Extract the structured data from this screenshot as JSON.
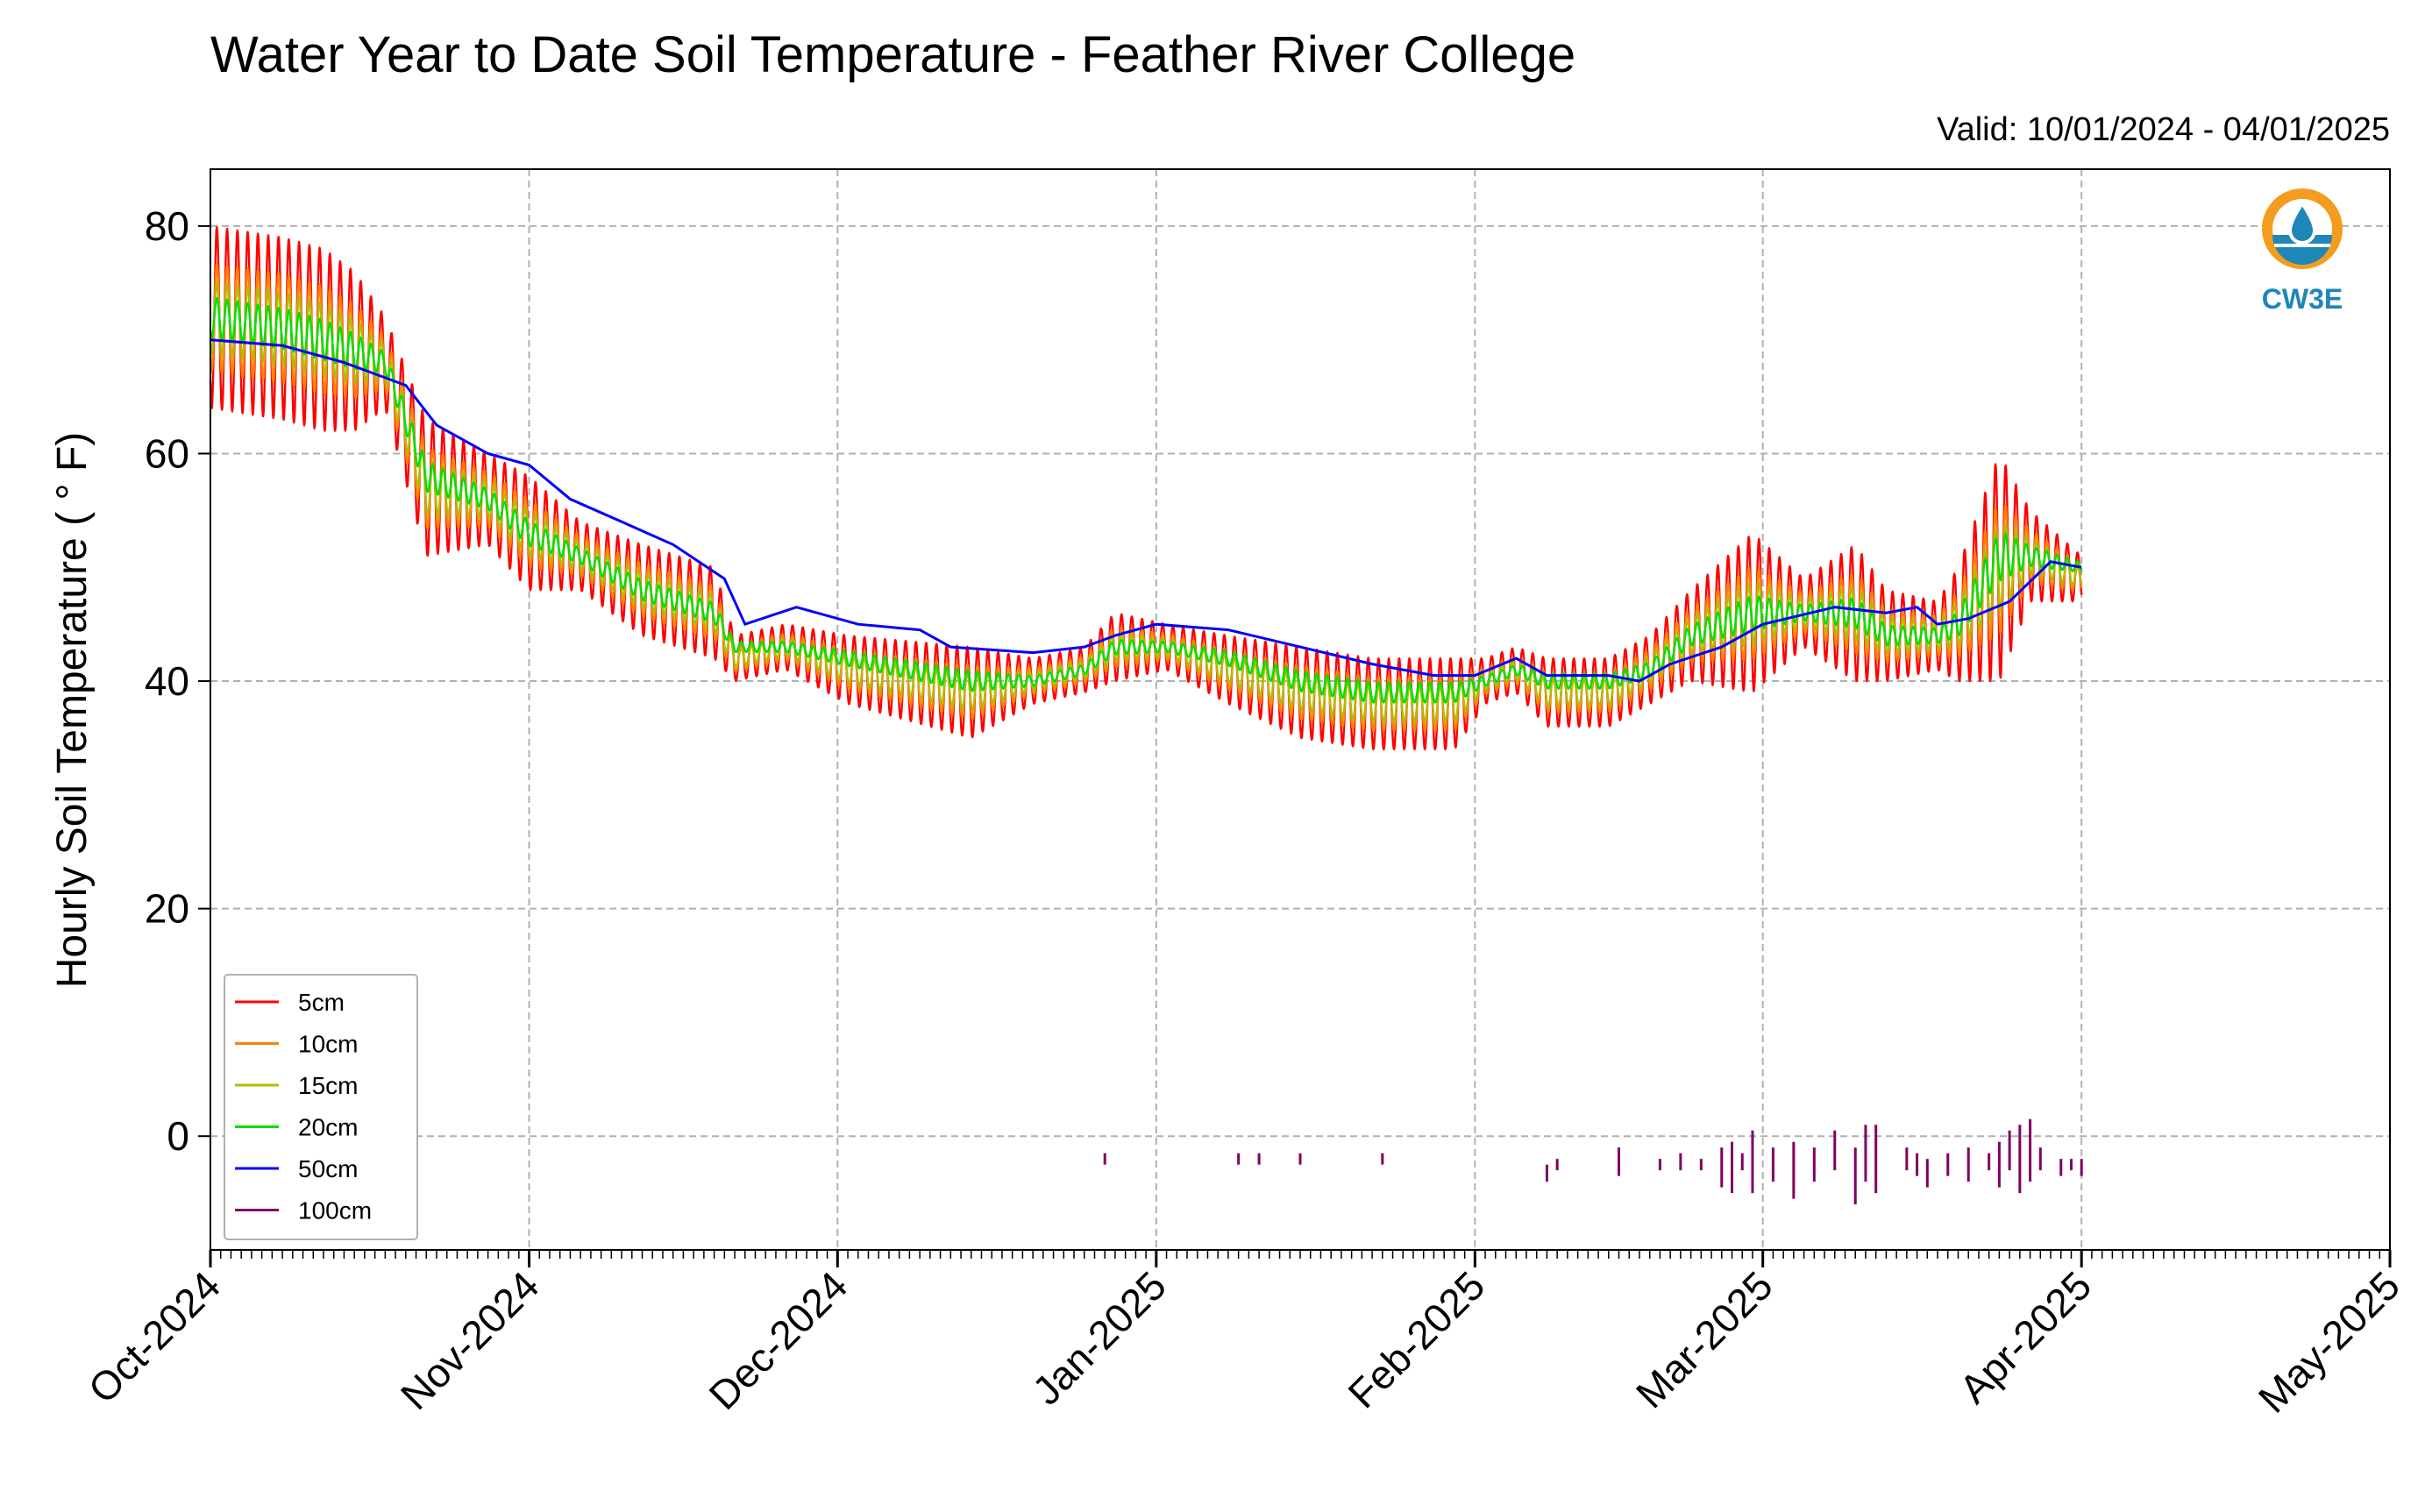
{
  "chart_data": {
    "type": "line",
    "title": "Water Year to Date Soil Temperature - Feather River College",
    "subtitle": "Valid: 10/01/2024 - 04/01/2025",
    "xlabel": "",
    "ylabel": "Hourly Soil Temperature ( $^\\circ$F)",
    "ylabel_display": "Hourly Soil Temperature ( ° F)",
    "xlim": [
      "2024-10-01",
      "2025-05-01"
    ],
    "ylim": [
      -10,
      85
    ],
    "x_ticks": [
      "Oct-2024",
      "Nov-2024",
      "Dec-2024",
      "Jan-2025",
      "Feb-2025",
      "Mar-2025",
      "Apr-2025",
      "May-2025"
    ],
    "y_ticks": [
      0,
      20,
      40,
      60,
      80
    ],
    "grid": true,
    "legend_position": "lower-left",
    "logo": {
      "text": "CW3E",
      "color_top": "#f39c1f",
      "color_bottom": "#1f86b8"
    },
    "series_colors": {
      "5cm": "#ff0000",
      "10cm": "#ff8000",
      "15cm": "#b8b800",
      "20cm": "#00e000",
      "50cm": "#0000ff",
      "100cm": "#800060"
    },
    "series": [
      {
        "name": "5cm",
        "color": "#ff0000",
        "amplitude_multiplier": 1.0,
        "envelope": [
          [
            "2024-10-01",
            72,
            8
          ],
          [
            "2024-10-08",
            71,
            8
          ],
          [
            "2024-10-12",
            70,
            8
          ],
          [
            "2024-10-15",
            69,
            7
          ],
          [
            "2024-10-18",
            68,
            4
          ],
          [
            "2024-10-22",
            57,
            6
          ],
          [
            "2024-10-28",
            56,
            4
          ],
          [
            "2024-11-01",
            53,
            5
          ],
          [
            "2024-11-06",
            51,
            3
          ],
          [
            "2024-11-12",
            48,
            4
          ],
          [
            "2024-11-19",
            46,
            4
          ],
          [
            "2024-11-21",
            42,
            2
          ],
          [
            "2024-11-26",
            43,
            2
          ],
          [
            "2024-12-02",
            41,
            3
          ],
          [
            "2024-12-14",
            39,
            4
          ],
          [
            "2024-12-20",
            40,
            2
          ],
          [
            "2024-12-25",
            41,
            2
          ],
          [
            "2024-12-28",
            43,
            3
          ],
          [
            "2025-01-02",
            43,
            2
          ],
          [
            "2025-01-08",
            41,
            3
          ],
          [
            "2025-01-15",
            39,
            4
          ],
          [
            "2025-01-22",
            38,
            4
          ],
          [
            "2025-01-30",
            38,
            4
          ],
          [
            "2025-02-02",
            40,
            2
          ],
          [
            "2025-02-05",
            41,
            2
          ],
          [
            "2025-02-08",
            39,
            3
          ],
          [
            "2025-02-14",
            39,
            3
          ],
          [
            "2025-02-18",
            41,
            3
          ],
          [
            "2025-02-22",
            44,
            4
          ],
          [
            "2025-02-28",
            46,
            7
          ],
          [
            "2025-03-05",
            46,
            3
          ],
          [
            "2025-03-10",
            46,
            6
          ],
          [
            "2025-03-13",
            44,
            4
          ],
          [
            "2025-03-18",
            44,
            3
          ],
          [
            "2025-03-20",
            45,
            5
          ],
          [
            "2025-03-24",
            50,
            10
          ],
          [
            "2025-03-27",
            51,
            4
          ],
          [
            "2025-04-01",
            49,
            2
          ]
        ]
      },
      {
        "name": "10cm",
        "color": "#ff8000",
        "amplitude_multiplier": 0.6,
        "envelope": [
          [
            "2024-10-01",
            72,
            8
          ],
          [
            "2024-10-08",
            71,
            8
          ],
          [
            "2024-10-12",
            70,
            8
          ],
          [
            "2024-10-15",
            69,
            7
          ],
          [
            "2024-10-18",
            68,
            4
          ],
          [
            "2024-10-22",
            57,
            6
          ],
          [
            "2024-10-28",
            56,
            4
          ],
          [
            "2024-11-01",
            53,
            5
          ],
          [
            "2024-11-06",
            51,
            3
          ],
          [
            "2024-11-12",
            48,
            4
          ],
          [
            "2024-11-19",
            46,
            4
          ],
          [
            "2024-11-21",
            42,
            2
          ],
          [
            "2024-11-26",
            43,
            2
          ],
          [
            "2024-12-02",
            41,
            3
          ],
          [
            "2024-12-14",
            39,
            4
          ],
          [
            "2024-12-20",
            40,
            2
          ],
          [
            "2024-12-25",
            41,
            2
          ],
          [
            "2024-12-28",
            43,
            3
          ],
          [
            "2025-01-02",
            43,
            2
          ],
          [
            "2025-01-08",
            41,
            3
          ],
          [
            "2025-01-15",
            39,
            4
          ],
          [
            "2025-01-22",
            38,
            4
          ],
          [
            "2025-01-30",
            38,
            4
          ],
          [
            "2025-02-02",
            40,
            2
          ],
          [
            "2025-02-05",
            41,
            2
          ],
          [
            "2025-02-08",
            39,
            3
          ],
          [
            "2025-02-14",
            39,
            3
          ],
          [
            "2025-02-18",
            41,
            3
          ],
          [
            "2025-02-22",
            44,
            4
          ],
          [
            "2025-02-28",
            46,
            7
          ],
          [
            "2025-03-05",
            46,
            3
          ],
          [
            "2025-03-10",
            46,
            6
          ],
          [
            "2025-03-13",
            44,
            4
          ],
          [
            "2025-03-18",
            44,
            3
          ],
          [
            "2025-03-20",
            45,
            5
          ],
          [
            "2025-03-24",
            50,
            10
          ],
          [
            "2025-03-27",
            51,
            4
          ],
          [
            "2025-04-01",
            49,
            2
          ]
        ]
      },
      {
        "name": "15cm",
        "color": "#b8b800",
        "amplitude_multiplier": 0.4,
        "envelope": [
          [
            "2024-10-01",
            72,
            8
          ],
          [
            "2024-10-08",
            71,
            8
          ],
          [
            "2024-10-12",
            70,
            8
          ],
          [
            "2024-10-15",
            69,
            7
          ],
          [
            "2024-10-18",
            68,
            4
          ],
          [
            "2024-10-22",
            57,
            6
          ],
          [
            "2024-10-28",
            56,
            4
          ],
          [
            "2024-11-01",
            53,
            5
          ],
          [
            "2024-11-06",
            51,
            3
          ],
          [
            "2024-11-12",
            48,
            4
          ],
          [
            "2024-11-19",
            46,
            4
          ],
          [
            "2024-11-21",
            42,
            2
          ],
          [
            "2024-11-26",
            43,
            2
          ],
          [
            "2024-12-02",
            41,
            3
          ],
          [
            "2024-12-14",
            39,
            4
          ],
          [
            "2024-12-20",
            40,
            2
          ],
          [
            "2024-12-25",
            41,
            2
          ],
          [
            "2024-12-28",
            43,
            3
          ],
          [
            "2025-01-02",
            43,
            2
          ],
          [
            "2025-01-08",
            41,
            3
          ],
          [
            "2025-01-15",
            39,
            4
          ],
          [
            "2025-01-22",
            38,
            4
          ],
          [
            "2025-01-30",
            38,
            4
          ],
          [
            "2025-02-02",
            40,
            2
          ],
          [
            "2025-02-05",
            41,
            2
          ],
          [
            "2025-02-08",
            39,
            3
          ],
          [
            "2025-02-14",
            39,
            3
          ],
          [
            "2025-02-18",
            41,
            3
          ],
          [
            "2025-02-22",
            44,
            4
          ],
          [
            "2025-02-28",
            46,
            7
          ],
          [
            "2025-03-05",
            46,
            3
          ],
          [
            "2025-03-10",
            46,
            6
          ],
          [
            "2025-03-13",
            44,
            4
          ],
          [
            "2025-03-18",
            44,
            3
          ],
          [
            "2025-03-20",
            45,
            5
          ],
          [
            "2025-03-24",
            50,
            10
          ],
          [
            "2025-03-27",
            51,
            4
          ],
          [
            "2025-04-01",
            49,
            2
          ]
        ]
      },
      {
        "name": "20cm",
        "color": "#00e000",
        "amplitude_multiplier": 0.22,
        "envelope": [
          [
            "2024-10-01",
            72,
            8
          ],
          [
            "2024-10-08",
            71,
            8
          ],
          [
            "2024-10-12",
            70,
            8
          ],
          [
            "2024-10-15",
            69,
            7
          ],
          [
            "2024-10-18",
            68,
            4
          ],
          [
            "2024-10-22",
            58,
            6
          ],
          [
            "2024-10-28",
            56,
            4
          ],
          [
            "2024-11-01",
            53,
            5
          ],
          [
            "2024-11-06",
            51,
            3
          ],
          [
            "2024-11-12",
            48,
            4
          ],
          [
            "2024-11-19",
            46,
            4
          ],
          [
            "2024-11-21",
            43,
            2
          ],
          [
            "2024-11-26",
            43,
            2
          ],
          [
            "2024-12-02",
            42,
            3
          ],
          [
            "2024-12-14",
            40,
            4
          ],
          [
            "2024-12-20",
            40,
            2
          ],
          [
            "2024-12-25",
            41,
            2
          ],
          [
            "2024-12-28",
            43,
            3
          ],
          [
            "2025-01-02",
            43,
            2
          ],
          [
            "2025-01-08",
            42,
            3
          ],
          [
            "2025-01-15",
            40,
            4
          ],
          [
            "2025-01-22",
            39,
            4
          ],
          [
            "2025-01-30",
            39,
            4
          ],
          [
            "2025-02-02",
            40,
            2
          ],
          [
            "2025-02-05",
            41,
            2
          ],
          [
            "2025-02-08",
            40,
            3
          ],
          [
            "2025-02-14",
            40,
            3
          ],
          [
            "2025-02-18",
            41,
            3
          ],
          [
            "2025-02-22",
            44,
            4
          ],
          [
            "2025-02-28",
            46,
            7
          ],
          [
            "2025-03-05",
            46,
            3
          ],
          [
            "2025-03-10",
            46,
            6
          ],
          [
            "2025-03-13",
            44,
            4
          ],
          [
            "2025-03-18",
            44,
            3
          ],
          [
            "2025-03-20",
            45,
            5
          ],
          [
            "2025-03-24",
            51,
            10
          ],
          [
            "2025-03-27",
            51,
            4
          ],
          [
            "2025-04-01",
            50,
            2
          ]
        ]
      },
      {
        "name": "50cm",
        "color": "#0000ff",
        "points": [
          [
            "2024-10-01",
            70
          ],
          [
            "2024-10-08",
            69.5
          ],
          [
            "2024-10-14",
            68
          ],
          [
            "2024-10-17",
            67
          ],
          [
            "2024-10-20",
            66
          ],
          [
            "2024-10-23",
            62.5
          ],
          [
            "2024-10-28",
            60
          ],
          [
            "2024-11-01",
            59
          ],
          [
            "2024-11-05",
            56
          ],
          [
            "2024-11-10",
            54
          ],
          [
            "2024-11-15",
            52
          ],
          [
            "2024-11-20",
            49
          ],
          [
            "2024-11-22",
            45
          ],
          [
            "2024-11-27",
            46.5
          ],
          [
            "2024-12-03",
            45
          ],
          [
            "2024-12-09",
            44.5
          ],
          [
            "2024-12-12",
            43
          ],
          [
            "2024-12-20",
            42.5
          ],
          [
            "2024-12-25",
            43
          ],
          [
            "2024-12-28",
            44
          ],
          [
            "2025-01-01",
            45
          ],
          [
            "2025-01-08",
            44.5
          ],
          [
            "2025-01-15",
            43
          ],
          [
            "2025-01-22",
            41.5
          ],
          [
            "2025-01-28",
            40.5
          ],
          [
            "2025-02-01",
            40.5
          ],
          [
            "2025-02-05",
            42
          ],
          [
            "2025-02-08",
            40.5
          ],
          [
            "2025-02-14",
            40.5
          ],
          [
            "2025-02-17",
            40
          ],
          [
            "2025-02-20",
            41.5
          ],
          [
            "2025-02-25",
            43
          ],
          [
            "2025-03-01",
            45
          ],
          [
            "2025-03-08",
            46.5
          ],
          [
            "2025-03-13",
            46
          ],
          [
            "2025-03-16",
            46.5
          ],
          [
            "2025-03-18",
            45
          ],
          [
            "2025-03-21",
            45.5
          ],
          [
            "2025-03-25",
            47
          ],
          [
            "2025-03-29",
            50.5
          ],
          [
            "2025-04-01",
            50
          ]
        ]
      },
      {
        "name": "100cm",
        "color": "#800060",
        "segments": [
          [
            "2024-12-27",
            -1.5,
            -2.5
          ],
          [
            "2025-01-09",
            -1.5,
            -2.5
          ],
          [
            "2025-01-11",
            -1.5,
            -2.5
          ],
          [
            "2025-01-15",
            -1.5,
            -2.5
          ],
          [
            "2025-01-23",
            -1.5,
            -2.5
          ],
          [
            "2025-02-08",
            -2.5,
            -4
          ],
          [
            "2025-02-09",
            -2,
            -3
          ],
          [
            "2025-02-15",
            -1,
            -3.5
          ],
          [
            "2025-02-19",
            -2,
            -3
          ],
          [
            "2025-02-21",
            -1.5,
            -3
          ],
          [
            "2025-02-23",
            -2,
            -3
          ],
          [
            "2025-02-25",
            -1,
            -4.5
          ],
          [
            "2025-02-26",
            -0.5,
            -5
          ],
          [
            "2025-02-27",
            -1.5,
            -3
          ],
          [
            "2025-02-28",
            0.5,
            -5
          ],
          [
            "2025-03-02",
            -1,
            -4
          ],
          [
            "2025-03-04",
            -0.5,
            -5.5
          ],
          [
            "2025-03-06",
            -1,
            -4
          ],
          [
            "2025-03-08",
            0.5,
            -3
          ],
          [
            "2025-03-10",
            -1,
            -6
          ],
          [
            "2025-03-11",
            1,
            -4
          ],
          [
            "2025-03-12",
            1,
            -5
          ],
          [
            "2025-03-15",
            -1,
            -3
          ],
          [
            "2025-03-16",
            -1.5,
            -3.5
          ],
          [
            "2025-03-17",
            -2,
            -4.5
          ],
          [
            "2025-03-19",
            -1.5,
            -3.5
          ],
          [
            "2025-03-21",
            -1,
            -4
          ],
          [
            "2025-03-23",
            -1.5,
            -3
          ],
          [
            "2025-03-24",
            -0.5,
            -4.5
          ],
          [
            "2025-03-25",
            0.5,
            -3
          ],
          [
            "2025-03-26",
            1,
            -5
          ],
          [
            "2025-03-27",
            1.5,
            -4
          ],
          [
            "2025-03-28",
            -1,
            -3
          ],
          [
            "2025-03-30",
            -2,
            -3.5
          ],
          [
            "2025-03-31",
            -2,
            -3
          ],
          [
            "2025-04-01",
            -2,
            -3.5
          ]
        ]
      }
    ]
  }
}
